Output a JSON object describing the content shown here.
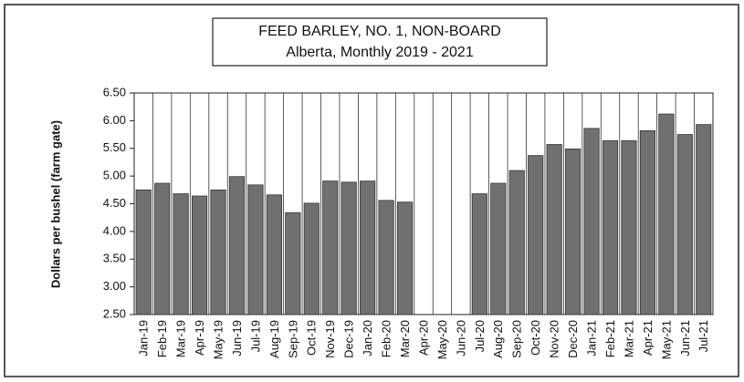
{
  "chart_data": {
    "type": "bar",
    "title": [
      "FEED BARLEY, NO. 1, NON-BOARD",
      "Alberta, Monthly 2019 - 2021"
    ],
    "y_label": "Dollars per bushel (farm gate)",
    "categories": [
      "Jan-19",
      "Feb-19",
      "Mar-19",
      "Apr-19",
      "May-19",
      "Jun-19",
      "Jul-19",
      "Aug-19",
      "Sep-19",
      "Oct-19",
      "Nov-19",
      "Dec-19",
      "Jan-20",
      "Feb-20",
      "Mar-20",
      "Apr-20",
      "May-20",
      "Jun-20",
      "Jul-20",
      "Aug-20",
      "Sep-20",
      "Oct-20",
      "Nov-20",
      "Dec-20",
      "Jan-21",
      "Feb-21",
      "Mar-21",
      "Apr-21",
      "May-21",
      "Jun-21",
      "Jul-21"
    ],
    "values": [
      4.75,
      4.87,
      4.68,
      4.64,
      4.75,
      4.99,
      4.84,
      4.66,
      4.34,
      4.51,
      4.91,
      4.89,
      4.91,
      4.56,
      4.53,
      null,
      null,
      null,
      4.68,
      4.87,
      5.1,
      5.37,
      5.57,
      5.49,
      5.86,
      5.64,
      5.64,
      5.82,
      6.12,
      5.75,
      5.93
    ],
    "color": "#707070",
    "ylim": [
      2.5,
      6.5
    ],
    "yticks": [
      {
        "value": 2.5,
        "label": "2.50"
      },
      {
        "value": 3,
        "label": "3.00"
      },
      {
        "value": 3.5,
        "label": "3.50"
      },
      {
        "value": 4,
        "label": "4.00"
      },
      {
        "value": 4.5,
        "label": "4.50"
      },
      {
        "value": 5,
        "label": "5.00"
      },
      {
        "value": 5.5,
        "label": "5.50"
      },
      {
        "value": 6,
        "label": "6.00"
      },
      {
        "value": 6.5,
        "label": "6.50"
      }
    ],
    "grid": false,
    "x_grid": true
  }
}
